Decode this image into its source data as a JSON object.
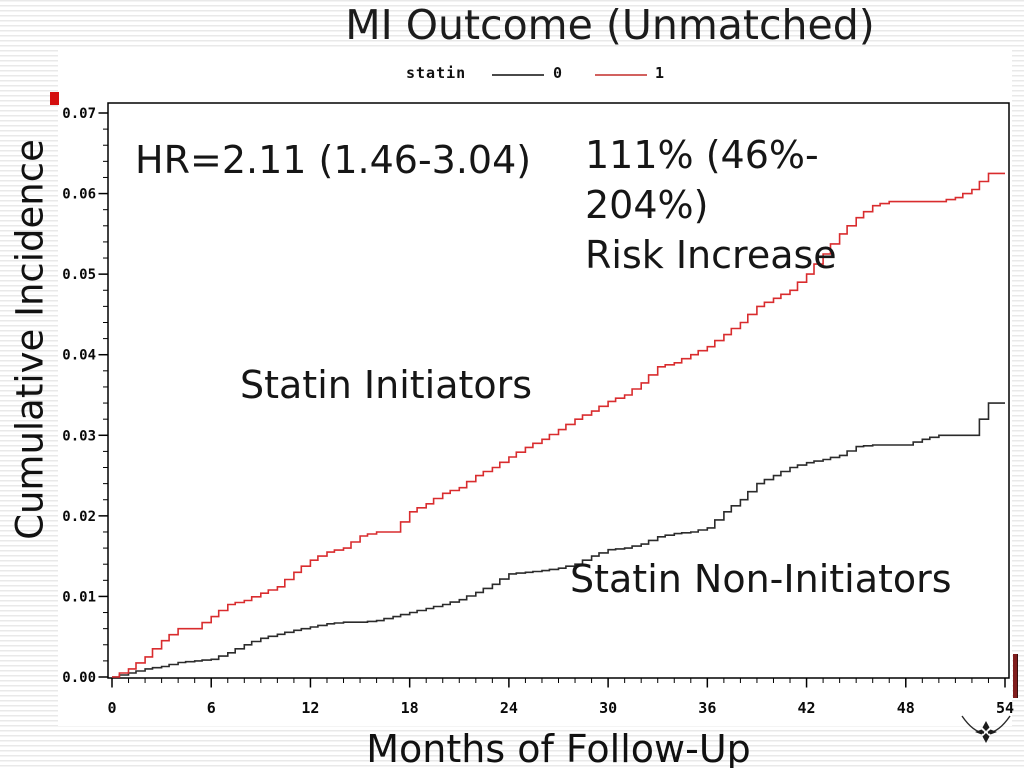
{
  "slide": {
    "title": "MI Outcome (Unmatched)"
  },
  "legend": {
    "title": "statin",
    "series": [
      {
        "label": "0",
        "color": "#4a4a4a"
      },
      {
        "label": "1",
        "color": "#d2615f"
      }
    ]
  },
  "axes": {
    "y_title": "Cumulative Incidence",
    "x_title": "Months of Follow-Up"
  },
  "annotations": {
    "hr": "HR=2.11 (1.46-3.04)",
    "risk_line1": "111% (46%-",
    "risk_line2": "204%)",
    "risk_line3": "Risk Increase",
    "initiators": "Statin Initiators",
    "non_initiators": "Statin Non-Initiators"
  },
  "colors": {
    "initiators_curve": "#d92c2e",
    "non_initiators_curve": "#2b2b2b",
    "accent_red": "#d40f0f",
    "edge_bar": "#801d1d"
  },
  "chart_data": {
    "type": "line",
    "style": "step",
    "title": "MI Outcome (Unmatched)",
    "xlabel": "Months of Follow-Up",
    "ylabel": "Cumulative Incidence",
    "xlim": [
      0,
      54
    ],
    "ylim": [
      0,
      0.07
    ],
    "x_ticks": [
      0,
      6,
      12,
      18,
      24,
      30,
      36,
      42,
      48,
      54
    ],
    "y_ticks": [
      0,
      0.01,
      0.02,
      0.03,
      0.04,
      0.05,
      0.06,
      0.07
    ],
    "x_minor_tick_step": 1,
    "y_minor_tick_step": 0.002,
    "grid": false,
    "legend": {
      "label": "statin",
      "position": "top",
      "entries": [
        {
          "name": "0",
          "meaning": "Statin Non-Initiators",
          "color": "black"
        },
        {
          "name": "1",
          "meaning": "Statin Initiators",
          "color": "red"
        }
      ]
    },
    "x_step_months": 1,
    "series": [
      {
        "name": "0",
        "label": "Statin Non-Initiators",
        "color": "#2b2b2b",
        "values": [
          0,
          0.0005,
          0.001,
          0.0013,
          0.0018,
          0.002,
          0.0022,
          0.003,
          0.004,
          0.0048,
          0.0053,
          0.0058,
          0.0062,
          0.0066,
          0.0068,
          0.0068,
          0.007,
          0.0075,
          0.008,
          0.0085,
          0.009,
          0.0096,
          0.0105,
          0.0115,
          0.0128,
          0.013,
          0.0132,
          0.0135,
          0.014,
          0.015,
          0.0158,
          0.016,
          0.0165,
          0.0174,
          0.0178,
          0.018,
          0.0185,
          0.0205,
          0.022,
          0.024,
          0.025,
          0.026,
          0.0266,
          0.027,
          0.0275,
          0.0286,
          0.0288,
          0.0288,
          0.0288,
          0.0295,
          0.03,
          0.03,
          0.03,
          0.034,
          0.034
        ]
      },
      {
        "name": "1",
        "label": "Statin Initiators",
        "color": "#d92c2e",
        "values": [
          0,
          0.001,
          0.0025,
          0.0045,
          0.006,
          0.006,
          0.0075,
          0.009,
          0.0095,
          0.0104,
          0.0112,
          0.013,
          0.0145,
          0.0155,
          0.016,
          0.0175,
          0.018,
          0.018,
          0.0205,
          0.0215,
          0.0228,
          0.0235,
          0.025,
          0.026,
          0.0273,
          0.0285,
          0.0295,
          0.0307,
          0.032,
          0.033,
          0.0342,
          0.035,
          0.0365,
          0.0385,
          0.039,
          0.04,
          0.041,
          0.0425,
          0.044,
          0.046,
          0.047,
          0.048,
          0.05,
          0.0525,
          0.055,
          0.057,
          0.0585,
          0.059,
          0.059,
          0.059,
          0.059,
          0.0595,
          0.0605,
          0.0625,
          0.0625
        ]
      }
    ]
  }
}
